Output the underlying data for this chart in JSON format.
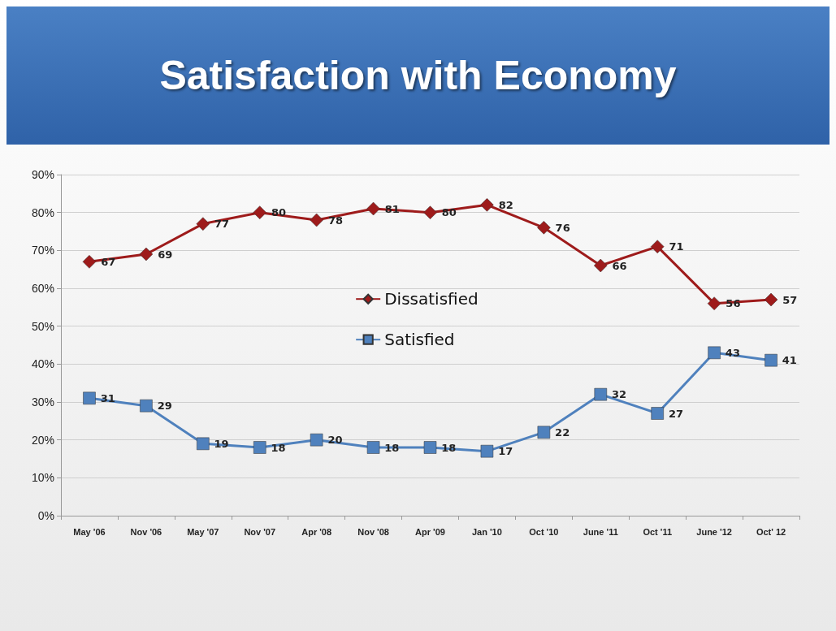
{
  "chart_data": {
    "type": "line",
    "title": "Satisfaction with Economy",
    "categories": [
      "May '06",
      "Nov '06",
      "May '07",
      "Nov '07",
      "Apr '08",
      "Nov '08",
      "Apr '09",
      "Jan '10",
      "Oct '10",
      "June '11",
      "Oct '11",
      "June '12",
      "Oct' 12"
    ],
    "series": [
      {
        "name": "Dissatisfied",
        "color": "#9e1b1b",
        "marker": "diamond",
        "values": [
          67,
          69,
          77,
          80,
          78,
          81,
          80,
          82,
          76,
          66,
          71,
          56,
          57
        ]
      },
      {
        "name": "Satisfied",
        "color": "#4f81bd",
        "marker": "square",
        "values": [
          31,
          29,
          19,
          18,
          20,
          18,
          18,
          17,
          22,
          32,
          27,
          43,
          41
        ]
      }
    ],
    "ylim": [
      0,
      90
    ],
    "yticks": [
      {
        "value": 0,
        "label": "0%"
      },
      {
        "value": 10,
        "label": "10%"
      },
      {
        "value": 20,
        "label": "20%"
      },
      {
        "value": 30,
        "label": "30%"
      },
      {
        "value": 40,
        "label": "40%"
      },
      {
        "value": 50,
        "label": "50%"
      },
      {
        "value": 60,
        "label": "60%"
      },
      {
        "value": 70,
        "label": "70%"
      },
      {
        "value": 80,
        "label": "80%"
      },
      {
        "value": 90,
        "label": "90%"
      }
    ],
    "grid": "y",
    "legend": "center",
    "data_labels": true,
    "line_style": "solid"
  }
}
